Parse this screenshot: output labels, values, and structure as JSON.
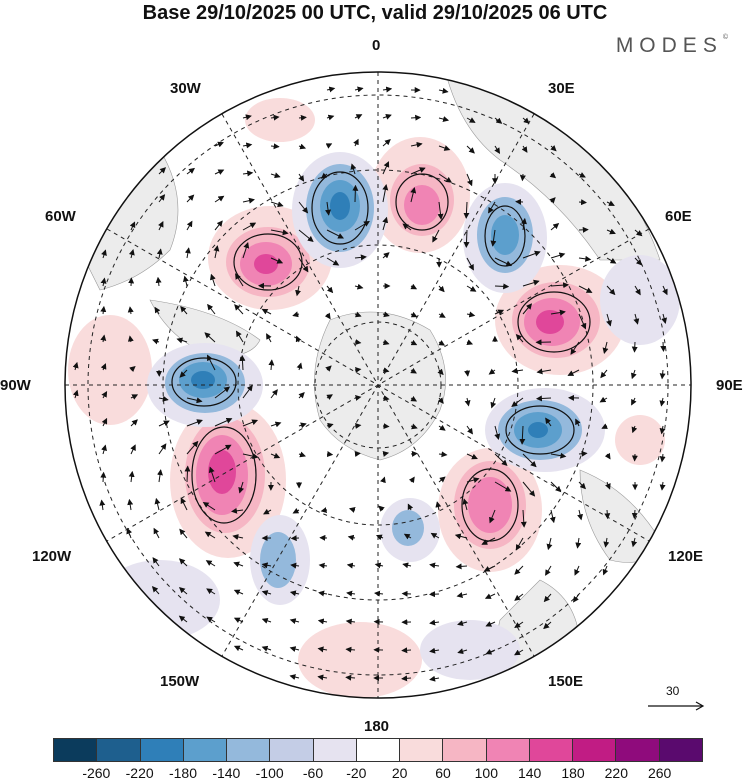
{
  "title": "Base 29/10/2025 00 UTC, valid 29/10/2025 06 UTC",
  "brand": "MODES",
  "brand_mark": "©",
  "map": {
    "projection": "north-polar-stereographic",
    "longitude_labels": {
      "top": "0",
      "top_right": "30E",
      "right_upper": "60E",
      "right": "90E",
      "right_lower": "120E",
      "bottom_right": "150E",
      "bottom": "180",
      "bottom_left": "150W",
      "left_lower": "120W",
      "left": "90W",
      "left_upper": "60W",
      "top_left": "30W"
    },
    "vector_reference": "30"
  },
  "colorbar": {
    "colors": [
      "#0b3b5c",
      "#1e5f8e",
      "#2f7fb8",
      "#5c9fcd",
      "#94b9dc",
      "#c4cde6",
      "#e6e3f0",
      "#ffffff",
      "#f9dcdc",
      "#f6b6c4",
      "#f084b4",
      "#e0479a",
      "#c11c84",
      "#8f0b7c",
      "#5a0a6e"
    ],
    "tick_labels": [
      "-260",
      "-220",
      "-180",
      "-140",
      "-100",
      "-60",
      "-20",
      "20",
      "60",
      "100",
      "140",
      "180",
      "220",
      "260"
    ]
  }
}
